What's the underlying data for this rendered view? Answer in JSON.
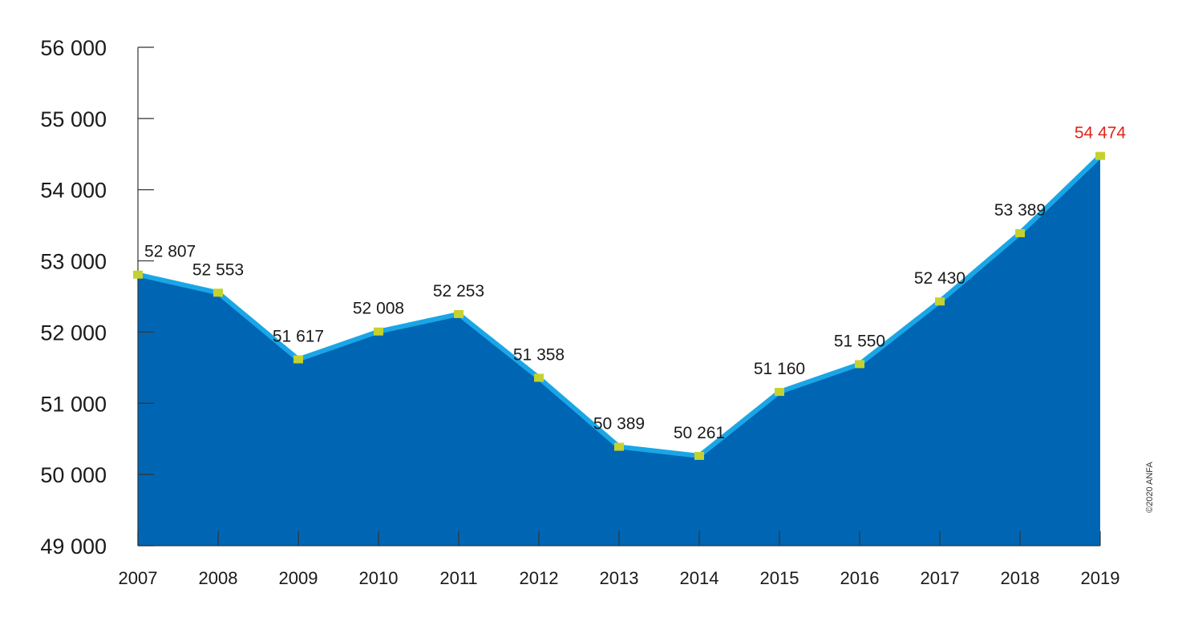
{
  "chart_data": {
    "type": "area",
    "title": "",
    "xlabel": "",
    "ylabel": "",
    "x": [
      "2007",
      "2008",
      "2009",
      "2010",
      "2011",
      "2012",
      "2013",
      "2014",
      "2015",
      "2016",
      "2017",
      "2018",
      "2019"
    ],
    "series": [
      {
        "values": [
          52807,
          52553,
          51617,
          52008,
          52253,
          51358,
          50389,
          50261,
          51160,
          51550,
          52430,
          53389,
          54474
        ]
      }
    ],
    "data_labels": [
      "52 807",
      "52 553",
      "51 617",
      "52 008",
      "52 253",
      "51 358",
      "50 389",
      "50 261",
      "51 160",
      "51 550",
      "52 430",
      "53 389",
      "54 474"
    ],
    "y_ticks": [
      56000,
      55000,
      54000,
      53000,
      52000,
      51000,
      50000,
      49000
    ],
    "y_tick_labels": [
      "56 000",
      "55 000",
      "54 000",
      "53 000",
      "52 000",
      "51 000",
      "50 000",
      "49 000"
    ],
    "ylim": [
      49000,
      56000
    ],
    "grid": false,
    "colors": {
      "area": "#0066b3",
      "line": "#1aa6e6",
      "marker": "#c4d22f",
      "highlight_label": "#e3231b",
      "axis": "#333333"
    }
  },
  "copyright": "©2020 ANFA"
}
